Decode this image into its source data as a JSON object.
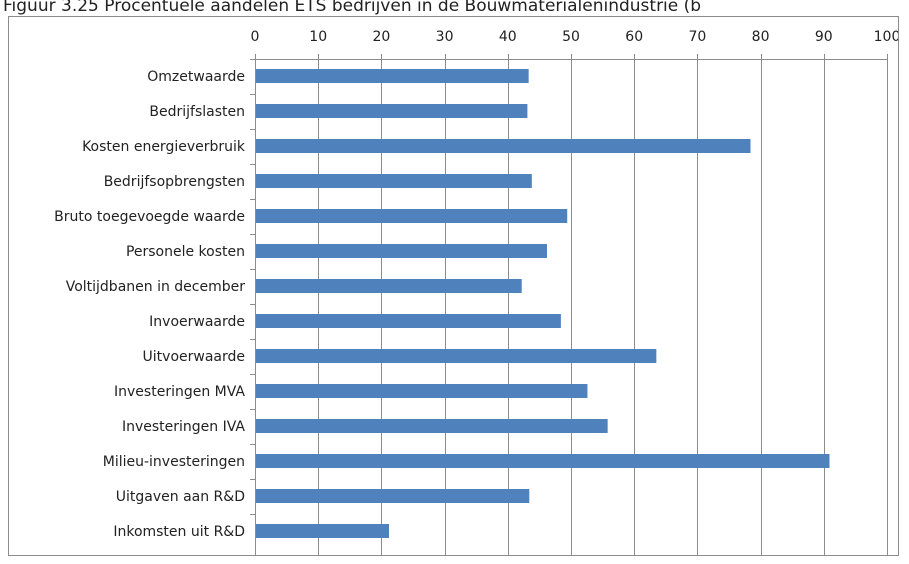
{
  "figure": {
    "title": "Figuur 3.25 Procentuele aandelen ETS bedrijven in de Bouwmaterialenindustrie (b"
  },
  "chart_data": {
    "type": "bar",
    "orientation": "horizontal",
    "title": "",
    "xlabel": "",
    "ylabel": "",
    "xlim": [
      0,
      100
    ],
    "x_ticks": [
      0,
      10,
      20,
      30,
      40,
      50,
      60,
      70,
      80,
      90,
      100
    ],
    "x_axis_position": "top",
    "grid": "vertical",
    "bar_color": "#4f81bd",
    "categories": [
      "Omzetwaarde",
      "Bedrijfslasten",
      "Kosten energieverbruik",
      "Bedrijfsopbrengsten",
      "Bruto toegevoegde waarde",
      "Personele kosten",
      "Voltijdbanen in december",
      "Invoerwaarde",
      "Uitvoerwaarde",
      "Investeringen MVA",
      "Investeringen IVA",
      "Milieu-investeringen",
      "Uitgaven aan R&D",
      "Inkomsten uit R&D"
    ],
    "values": [
      43.3,
      43.1,
      78.4,
      43.8,
      49.4,
      46.2,
      42.2,
      48.4,
      63.5,
      52.6,
      55.8,
      90.9,
      43.4,
      21.2
    ]
  }
}
